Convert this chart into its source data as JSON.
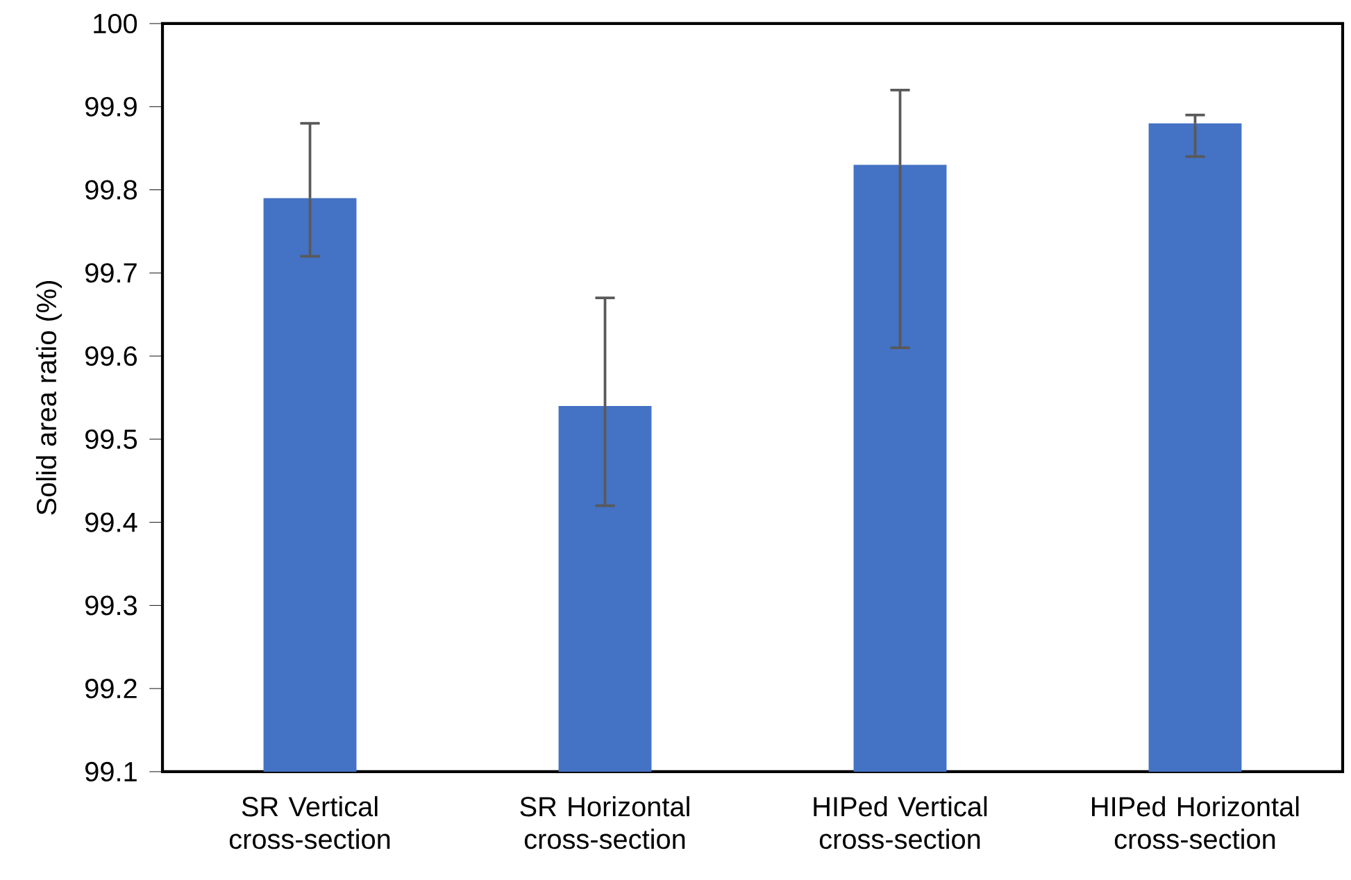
{
  "chart_data": {
    "type": "bar",
    "ylabel": "Solid area ratio (%)",
    "categories": [
      "SR Vertical cross-section",
      "SR Horizontal cross-section",
      "HIPed Vertical cross-section",
      "HIPed Horizontal cross-section"
    ],
    "values": [
      99.79,
      99.54,
      99.83,
      99.88
    ],
    "errors": [
      [
        99.72,
        99.88
      ],
      [
        99.42,
        99.67
      ],
      [
        99.61,
        99.92
      ],
      [
        99.84,
        99.89
      ]
    ],
    "color": "#4472c4",
    "ylim": [
      99.1,
      100
    ],
    "yticks": [
      99.1,
      99.2,
      99.3,
      99.4,
      99.5,
      99.6,
      99.7,
      99.8,
      99.9,
      100
    ],
    "grid": false
  }
}
